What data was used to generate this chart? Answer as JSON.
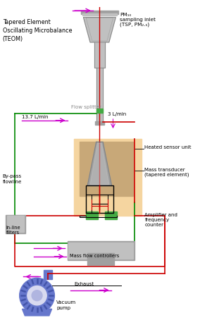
{
  "title": "Tapered Element\nOscillating Microbalance\n(TEOM)",
  "pm10_label": "PM₁₀\nsampling inlet\n(TSP, PM₂.₅)",
  "flow_splitter_label": "Flow splitter",
  "flow_13_7": "13.7 L/min",
  "flow_3": "3 L/min",
  "heated_sensor_label": "Heated sensor unit",
  "mass_transducer_label": "Mass transducer\n(tapered element)",
  "amplifier_label": "Amplifier and\nfrequency\ncounter",
  "bypass_label": "By-pass\nflowline",
  "inline_label": "In-line\nfilters",
  "mass_flow_label": "Mass flow controllers",
  "exhaust_label": "Exhaust",
  "vacuum_label": "Vacuum\npump",
  "bg_color": "#ffffff",
  "light_tan": "#f5d5a0",
  "inner_tan": "#c8a878",
  "green_box": "#44aa44",
  "red_line": "#cc0000",
  "green_line": "#008800",
  "magenta": "#cc00cc",
  "blue_pump": "#6677cc",
  "blue_pump_dark": "#4455aa",
  "gray_light": "#c0c0c0",
  "gray_mid": "#a0a0a0",
  "gray_dark": "#808080",
  "text_gray": "#888888"
}
